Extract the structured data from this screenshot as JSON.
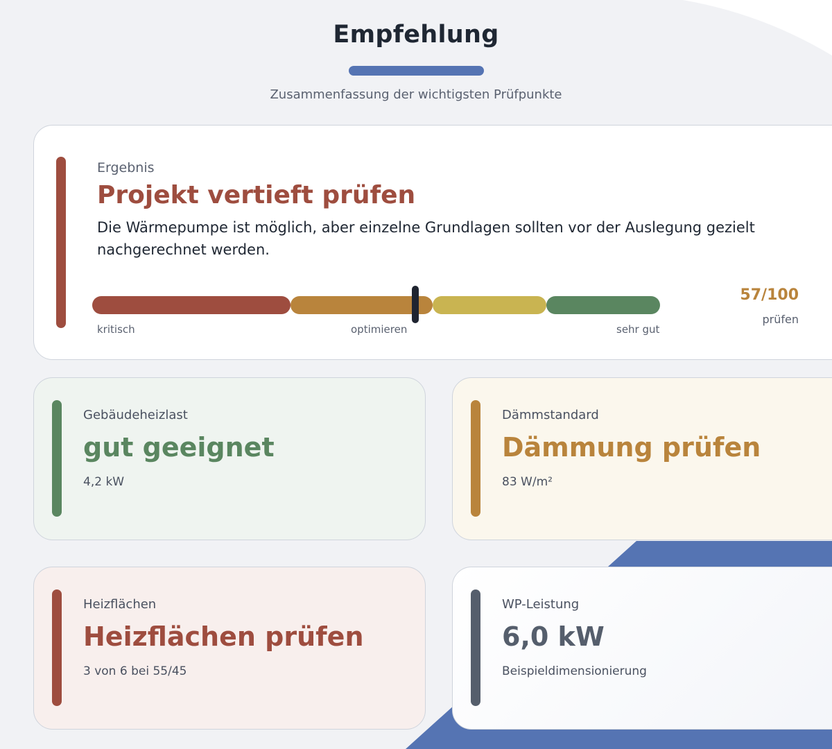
{
  "colors": {
    "red": "#9e4d3f",
    "orange": "#b9843c",
    "yellow": "#c9b451",
    "green": "#5a8660",
    "slate": "#555e6c",
    "blue": "#5574b3",
    "marker": "#1f2430"
  },
  "header": {
    "title": "Empfehlung",
    "subtitle": "Zusammenfassung der wichtigsten Prüfpunkte"
  },
  "result": {
    "label": "Ergebnis",
    "headline": "Projekt vertieft prüfen",
    "description": "Die Wärmepumpe ist möglich, aber einzelne Grundlagen sollten vor der Auslegung gezielt nachgerechnet werden.",
    "scale": {
      "label_low": "kritisch",
      "label_mid": "optimieren",
      "label_high": "sehr gut",
      "score_value": 57,
      "score_max": 100
    },
    "score_text": "57/100",
    "score_label": "prüfen"
  },
  "cards": {
    "heizlast": {
      "label": "Gebäudeheizlast",
      "headline": "gut geeignet",
      "detail": "4,2 kW"
    },
    "daemm": {
      "label": "Dämmstandard",
      "headline": "Dämmung prüfen",
      "detail": "83 W/m²"
    },
    "heizfl": {
      "label": "Heizflächen",
      "headline": "Heizflächen prüfen",
      "detail": "3 von 6 bei 55/45"
    },
    "wp": {
      "label": "WP-Leistung",
      "headline": "6,0 kW",
      "detail": "Beispieldimensionierung"
    }
  }
}
